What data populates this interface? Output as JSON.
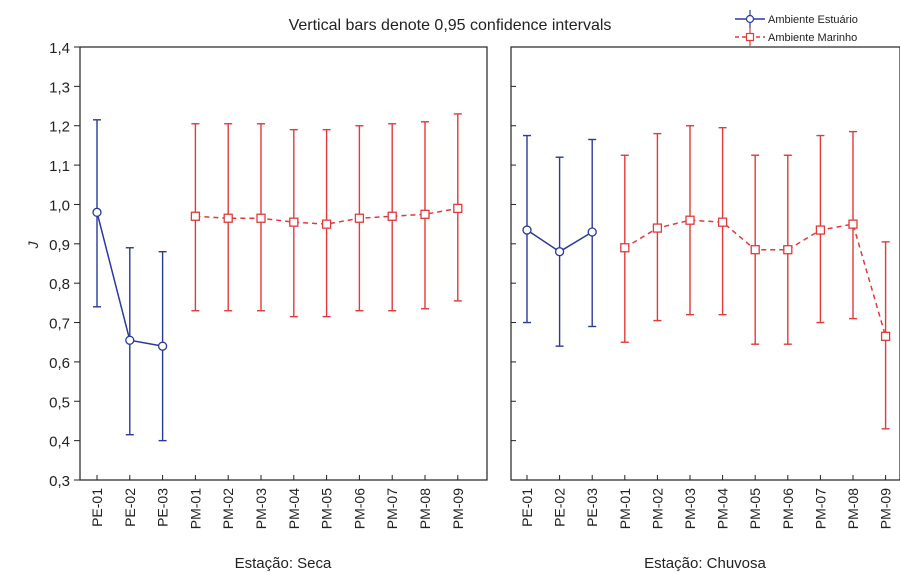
{
  "chart_data": {
    "type": "line",
    "title": "Vertical bars denote 0,95 confidence intervals",
    "ylabel": "J",
    "ylim": [
      0.3,
      1.4
    ],
    "y_ticks": [
      "0,3",
      "0,4",
      "0,5",
      "0,6",
      "0,7",
      "0,8",
      "0,9",
      "1,0",
      "1,1",
      "1,2",
      "1,3",
      "1,4"
    ],
    "categories": [
      "PE-01",
      "PE-02",
      "PE-03",
      "PM-01",
      "PM-02",
      "PM-03",
      "PM-04",
      "PM-05",
      "PM-06",
      "PM-07",
      "PM-08",
      "PM-09"
    ],
    "legend": [
      {
        "name": "Ambiente Estuário",
        "color": "#2a3a9a",
        "marker": "circle"
      },
      {
        "name": "Ambiente Marinho",
        "color": "#e03a3a",
        "marker": "square"
      }
    ],
    "panels": [
      {
        "xlabel": "Estação: Seca",
        "series": [
          {
            "name": "Ambiente Estuário",
            "categories": [
              "PE-01",
              "PE-02",
              "PE-03"
            ],
            "mean": [
              0.98,
              0.655,
              0.64
            ],
            "lower": [
              0.74,
              0.415,
              0.4
            ],
            "upper": [
              1.215,
              0.89,
              0.88
            ]
          },
          {
            "name": "Ambiente Marinho",
            "categories": [
              "PM-01",
              "PM-02",
              "PM-03",
              "PM-04",
              "PM-05",
              "PM-06",
              "PM-07",
              "PM-08",
              "PM-09"
            ],
            "mean": [
              0.97,
              0.965,
              0.965,
              0.955,
              0.95,
              0.965,
              0.97,
              0.975,
              0.99
            ],
            "lower": [
              0.73,
              0.73,
              0.73,
              0.715,
              0.715,
              0.73,
              0.73,
              0.735,
              0.755
            ],
            "upper": [
              1.205,
              1.205,
              1.205,
              1.19,
              1.19,
              1.2,
              1.205,
              1.21,
              1.23
            ]
          }
        ]
      },
      {
        "xlabel": "Estação: Chuvosa",
        "series": [
          {
            "name": "Ambiente Estuário",
            "categories": [
              "PE-01",
              "PE-02",
              "PE-03"
            ],
            "mean": [
              0.935,
              0.88,
              0.93
            ],
            "lower": [
              0.7,
              0.64,
              0.69
            ],
            "upper": [
              1.175,
              1.12,
              1.165
            ]
          },
          {
            "name": "Ambiente Marinho",
            "categories": [
              "PM-01",
              "PM-02",
              "PM-03",
              "PM-04",
              "PM-05",
              "PM-06",
              "PM-07",
              "PM-08",
              "PM-09"
            ],
            "mean": [
              0.89,
              0.94,
              0.96,
              0.955,
              0.885,
              0.885,
              0.935,
              0.95,
              0.665
            ],
            "lower": [
              0.65,
              0.705,
              0.72,
              0.72,
              0.645,
              0.645,
              0.7,
              0.71,
              0.43
            ],
            "upper": [
              1.125,
              1.18,
              1.2,
              1.195,
              1.125,
              1.125,
              1.175,
              1.185,
              0.905
            ]
          }
        ]
      }
    ]
  }
}
